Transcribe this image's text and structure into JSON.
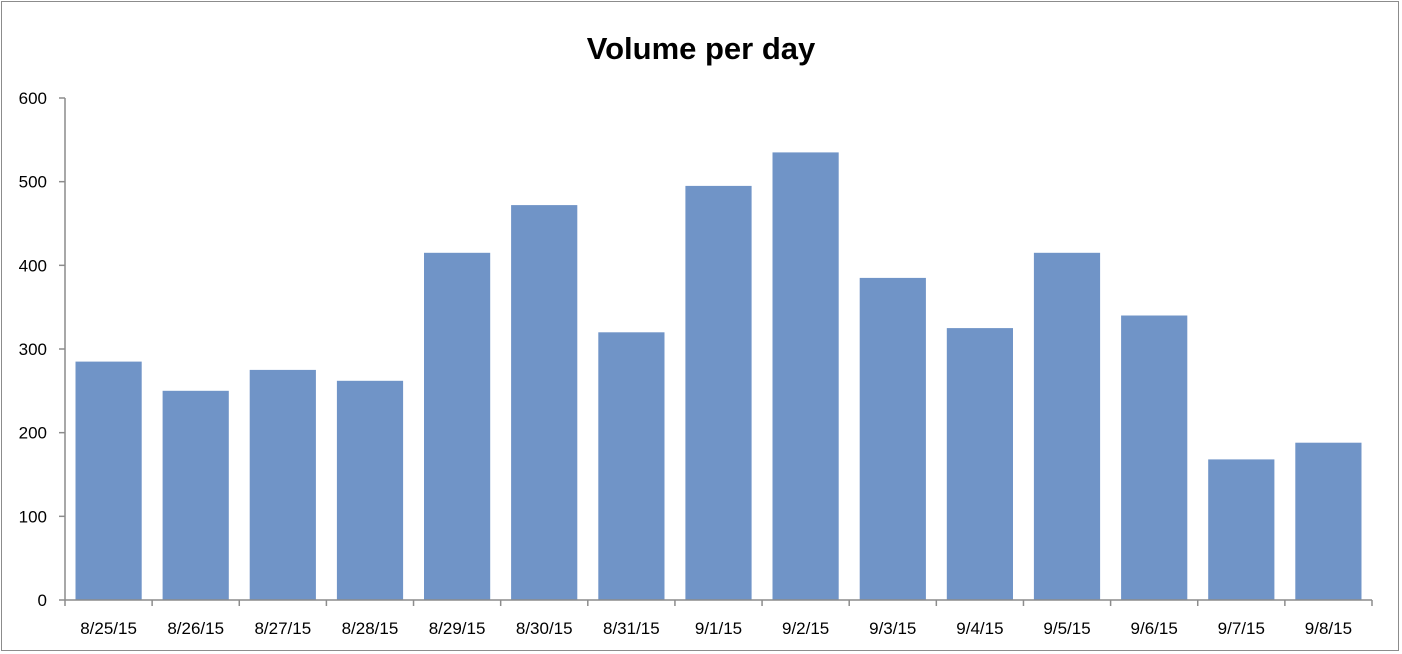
{
  "chart_data": {
    "type": "bar",
    "title": "Volume per day",
    "xlabel": "",
    "ylabel": "",
    "categories": [
      "8/25/15",
      "8/26/15",
      "8/27/15",
      "8/28/15",
      "8/29/15",
      "8/30/15",
      "8/31/15",
      "9/1/15",
      "9/2/15",
      "9/3/15",
      "9/4/15",
      "9/5/15",
      "9/6/15",
      "9/7/15",
      "9/8/15"
    ],
    "values": [
      285,
      250,
      275,
      262,
      415,
      472,
      320,
      495,
      535,
      385,
      325,
      415,
      340,
      168,
      188
    ],
    "ylim": [
      0,
      600
    ],
    "yticks": [
      0,
      100,
      200,
      300,
      400,
      500,
      600
    ],
    "bar_color": "#7094c7",
    "axis_color": "#8c8c8c",
    "grid": false,
    "legend": "none"
  }
}
